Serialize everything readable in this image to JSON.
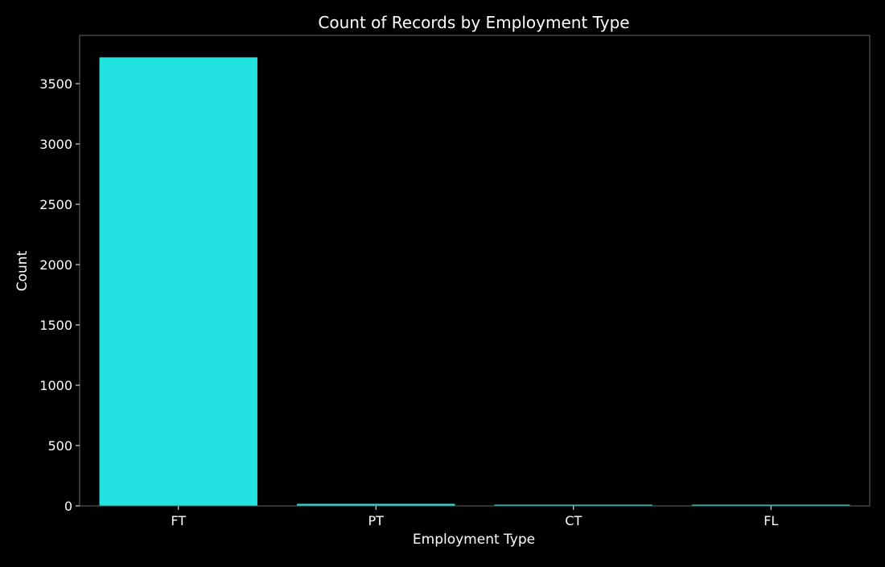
{
  "chart_data": {
    "type": "bar",
    "title": "Count of Records by Employment Type",
    "xlabel": "Employment Type",
    "ylabel": "Count",
    "categories": [
      "FT",
      "PT",
      "CT",
      "FL"
    ],
    "values": [
      3718,
      17,
      10,
      10
    ],
    "ylim": [
      0,
      3900
    ],
    "yticks": [
      0,
      500,
      1000,
      1500,
      2000,
      2500,
      3000,
      3500
    ],
    "ytick_labels": [
      "0",
      "500",
      "1000",
      "1500",
      "2000",
      "2500",
      "3000",
      "3500"
    ],
    "grid": false,
    "legend": "none",
    "colors": {
      "background": "#000000",
      "bar": "#22e3e0",
      "axis": "#666666",
      "text": "#ffffff"
    }
  }
}
